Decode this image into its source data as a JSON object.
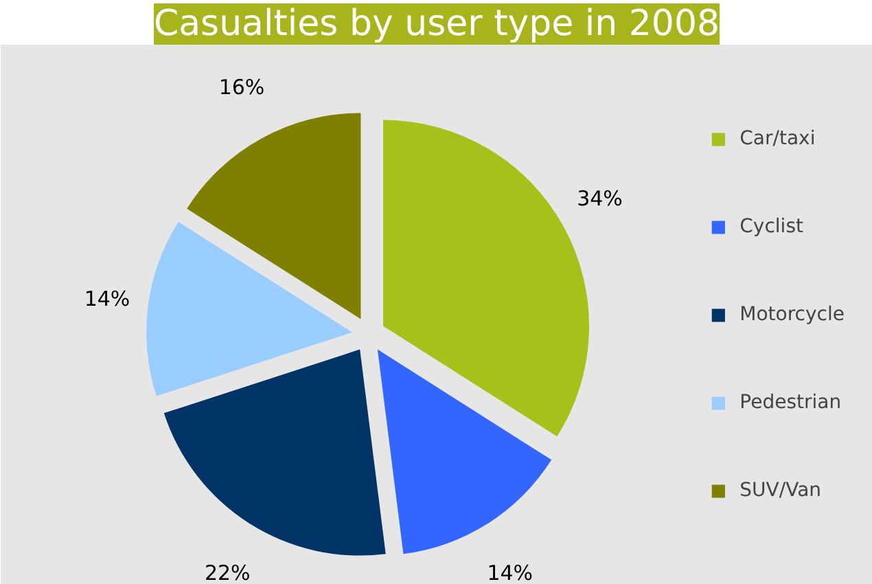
{
  "chart_data": {
    "type": "pie",
    "title": "Casualties by user type in 2008",
    "categories": [
      "Car/taxi",
      "Cyclist",
      "Motorcycle",
      "Pedestrian",
      "SUV/Van"
    ],
    "values": [
      34,
      14,
      22,
      14,
      16
    ],
    "colors": [
      "#a8c01a",
      "#3366ff",
      "#003366",
      "#99ccff",
      "#808000"
    ],
    "value_labels": [
      "34%",
      "14%",
      "22%",
      "14%",
      "16%"
    ],
    "legend": "right"
  }
}
